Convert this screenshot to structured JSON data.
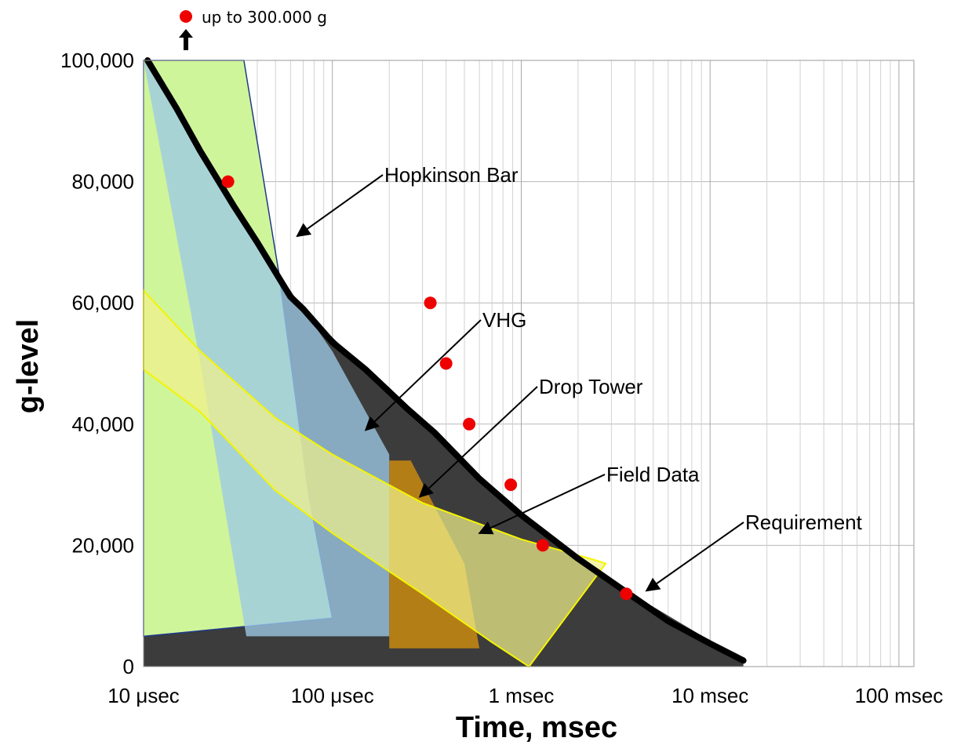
{
  "chart_data": {
    "type": "area",
    "xlabel": "Time, msec",
    "ylabel": "g-level",
    "x_scale": "log",
    "x_unit": "msec",
    "xlim": [
      0.01,
      120
    ],
    "ylim": [
      0,
      100000
    ],
    "y_ticks": [
      {
        "value": 0,
        "label": "0"
      },
      {
        "value": 20000,
        "label": "20,000"
      },
      {
        "value": 40000,
        "label": "40,000"
      },
      {
        "value": 60000,
        "label": "60,000"
      },
      {
        "value": 80000,
        "label": "80,000"
      },
      {
        "value": 100000,
        "label": "100,000"
      }
    ],
    "x_ticks": [
      {
        "value": 0.01,
        "label": "10 μsec"
      },
      {
        "value": 0.1,
        "label": "100 μsec"
      },
      {
        "value": 1,
        "label": "1 msec"
      },
      {
        "value": 10,
        "label": "10 msec"
      },
      {
        "value": 100,
        "label": "100 msec"
      }
    ],
    "grid": true,
    "colors": {
      "requirement_fill": "#3c3c3c",
      "requirement_line": "#000000",
      "hopkinson_fill": "#cff59a",
      "hopkinson_edge": "#1e3a8a",
      "vhg_fill": "#9cc9e6",
      "drop_tower_fill": "#c98a10",
      "field_data_fill": "#f0f08a",
      "field_data_edge": "#f4f400",
      "points": "#ee0000"
    },
    "regions": [
      {
        "name": "Requirement",
        "polygon": [
          [
            0.0105,
            100000
          ],
          [
            0.02,
            85000
          ],
          [
            0.04,
            70000
          ],
          [
            0.07,
            59000
          ],
          [
            0.15,
            49000
          ],
          [
            0.35,
            38500
          ],
          [
            1,
            25000
          ],
          [
            3,
            14000
          ],
          [
            15,
            1000
          ],
          [
            15,
            0
          ],
          [
            0.01,
            0
          ]
        ]
      },
      {
        "name": "Hopkinson Bar",
        "polygon": [
          [
            0.01,
            100000
          ],
          [
            0.034,
            100000
          ],
          [
            0.052,
            65000
          ],
          [
            0.075,
            28000
          ],
          [
            0.1,
            8000
          ],
          [
            0.01,
            5000
          ]
        ]
      },
      {
        "name": "VHG",
        "polygon": [
          [
            0.01,
            100000
          ],
          [
            0.06,
            62000
          ],
          [
            0.1,
            52000
          ],
          [
            0.2,
            35000
          ],
          [
            0.2,
            5000
          ],
          [
            0.035,
            5000
          ],
          [
            0.02,
            50000
          ]
        ]
      },
      {
        "name": "Drop Tower",
        "polygon": [
          [
            0.2,
            34000
          ],
          [
            0.26,
            34000
          ],
          [
            0.5,
            17000
          ],
          [
            0.6,
            3000
          ],
          [
            0.2,
            3000
          ]
        ]
      },
      {
        "name": "Field Data",
        "band_upper": [
          [
            0.01,
            62000
          ],
          [
            0.02,
            52000
          ],
          [
            0.05,
            41000
          ],
          [
            0.1,
            35000
          ],
          [
            0.3,
            27000
          ],
          [
            1,
            21000
          ],
          [
            2.5,
            17500
          ],
          [
            2.8,
            17000
          ]
        ],
        "band_lower": [
          [
            0.01,
            49000
          ],
          [
            0.02,
            42000
          ],
          [
            0.05,
            29000
          ],
          [
            0.1,
            22000
          ],
          [
            0.3,
            12000
          ],
          [
            0.7,
            4000
          ],
          [
            1.1,
            0
          ]
        ]
      }
    ],
    "points": [
      {
        "x": 0.028,
        "y": 80000
      },
      {
        "x": 0.33,
        "y": 60000
      },
      {
        "x": 0.4,
        "y": 50000
      },
      {
        "x": 0.53,
        "y": 40000
      },
      {
        "x": 0.88,
        "y": 30000
      },
      {
        "x": 1.3,
        "y": 20000
      },
      {
        "x": 3.6,
        "y": 12000
      }
    ],
    "requirement_curve": [
      [
        0.0105,
        100000
      ],
      [
        0.015,
        92000
      ],
      [
        0.02,
        85000
      ],
      [
        0.03,
        76000
      ],
      [
        0.04,
        70000
      ],
      [
        0.06,
        61000
      ],
      [
        0.07,
        59000
      ],
      [
        0.1,
        53500
      ],
      [
        0.15,
        49000
      ],
      [
        0.25,
        42500
      ],
      [
        0.35,
        38500
      ],
      [
        0.6,
        31000
      ],
      [
        1,
        25000
      ],
      [
        2,
        17800
      ],
      [
        3,
        14000
      ],
      [
        6,
        7500
      ],
      [
        10,
        3800
      ],
      [
        15,
        1000
      ]
    ],
    "annotations": [
      {
        "text": "Hopkinson Bar",
        "arrow_to": [
          0.065,
          71000
        ]
      },
      {
        "text": "VHG",
        "arrow_to": [
          0.15,
          39000
        ]
      },
      {
        "text": "Drop Tower",
        "arrow_to": [
          0.29,
          28000
        ]
      },
      {
        "text": "Field Data",
        "arrow_to": [
          0.6,
          22000
        ]
      },
      {
        "text": "Requirement",
        "arrow_to": [
          4.6,
          12500
        ]
      }
    ],
    "off_chart_note": "up to 300.000 g"
  }
}
